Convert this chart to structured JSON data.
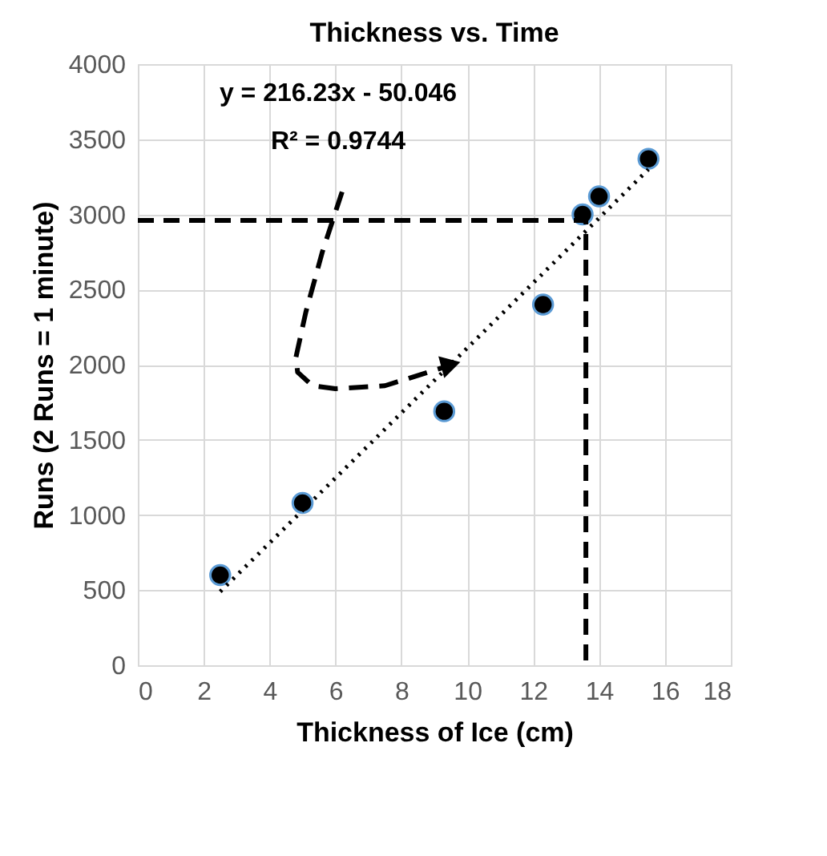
{
  "chart_data": {
    "type": "scatter",
    "title": "Thickness vs. Time",
    "xlabel": "Thickness of Ice (cm)",
    "ylabel": "Runs (2 Runs = 1 minute)",
    "x": [
      2.5,
      5.0,
      9.3,
      12.3,
      13.5,
      14.0,
      15.5
    ],
    "series": [
      {
        "color": "#000000",
        "values": [
          600,
          1080,
          1690,
          2400,
          3000,
          3120,
          3370
        ],
        "marker": "circle"
      },
      {
        "type": "line",
        "color": "#000000",
        "x": [
          2.5,
          15.5
        ],
        "values": [
          490,
          3300
        ],
        "line_style": "dotted",
        "marker": "none"
      },
      {
        "type": "line",
        "color": "#000000",
        "x": [
          0,
          13.6,
          13.6
        ],
        "values": [
          2960,
          2960,
          0
        ],
        "line_style": "dashed",
        "marker": "none"
      }
    ],
    "annotations": [
      "y = 216.23x - 50.046",
      "R² = 0.9744"
    ],
    "xlim": [
      0,
      18
    ],
    "xticks": [
      0,
      2,
      4,
      6,
      8,
      10,
      12,
      14,
      16,
      18
    ],
    "ylim": [
      0,
      4000
    ],
    "yticks": [
      0,
      500,
      1000,
      1500,
      2000,
      2500,
      3000,
      3500,
      4000
    ],
    "grid": true
  }
}
